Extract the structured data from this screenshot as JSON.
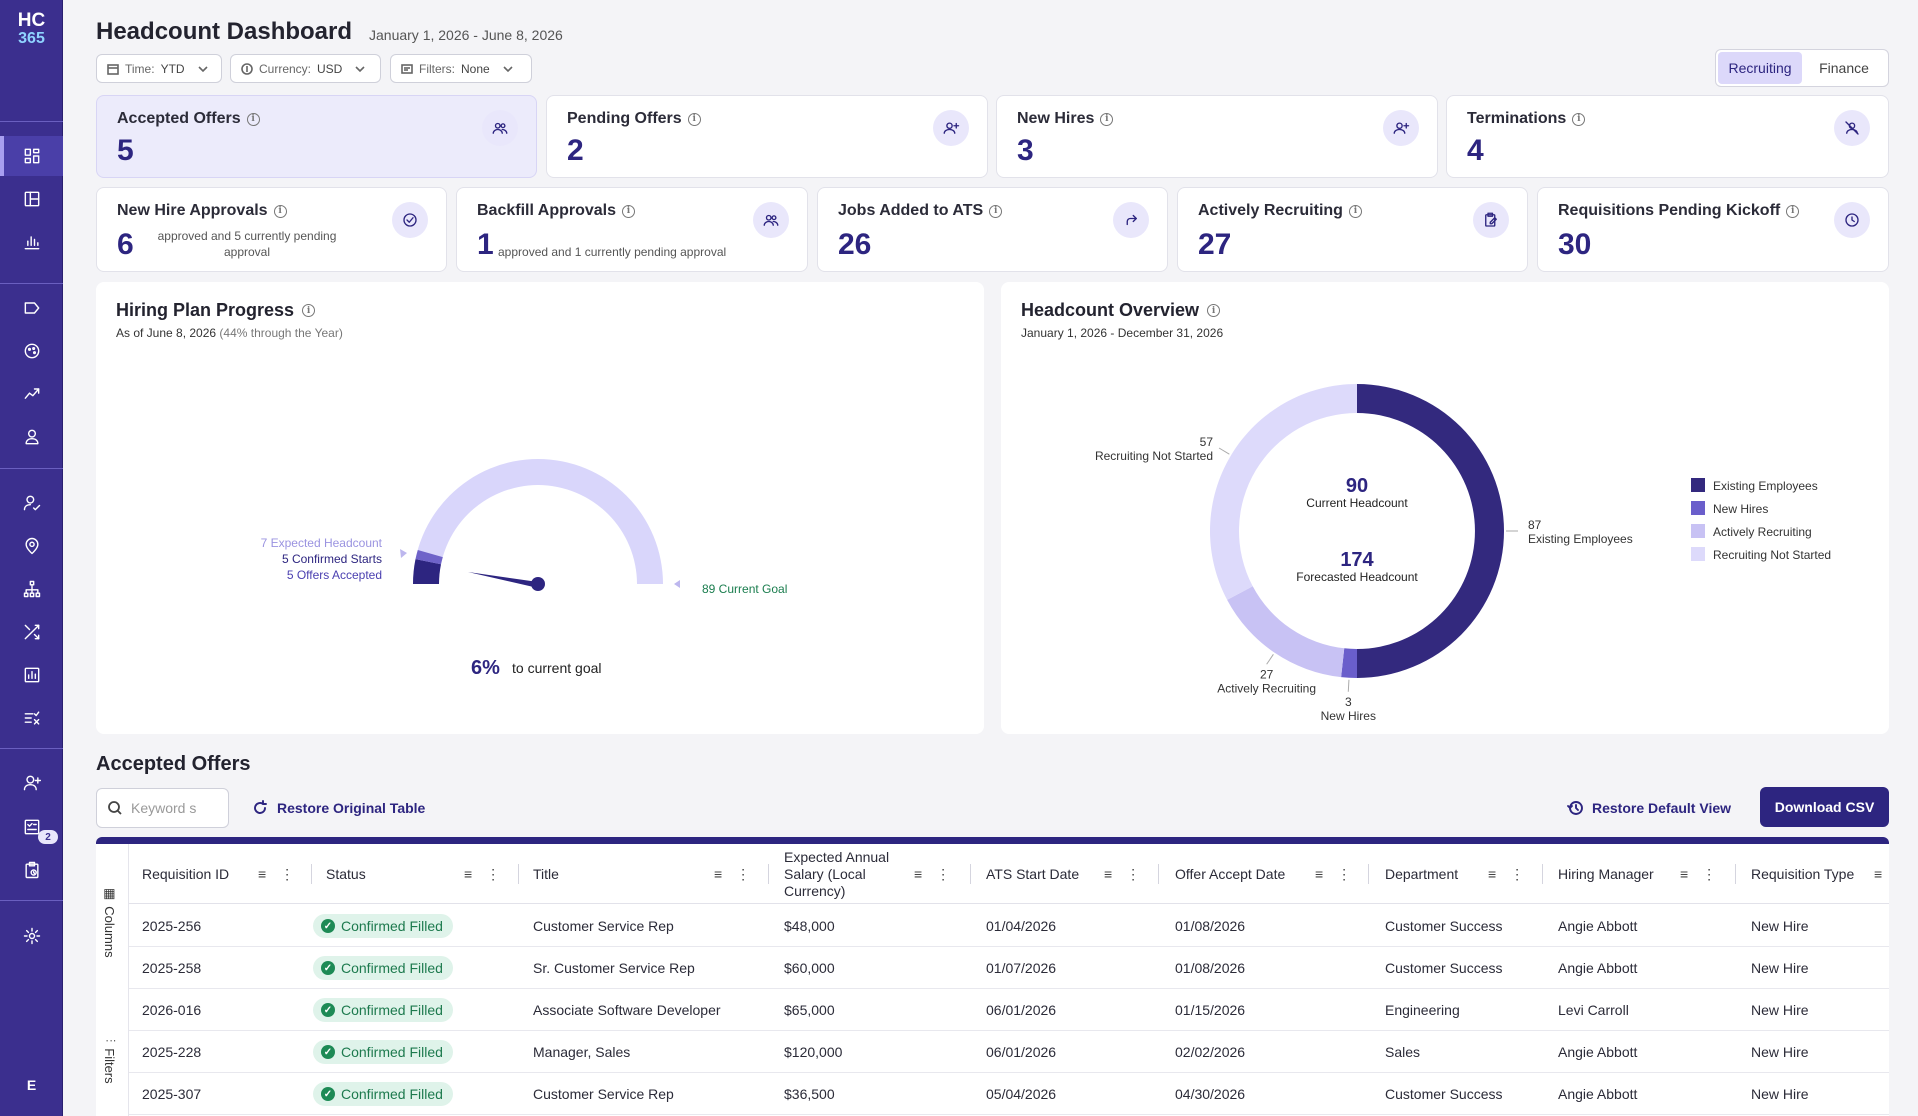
{
  "app": {
    "logo_line1": "HC",
    "logo_line2": "365",
    "user_initial": "E",
    "sidebar_badge": "2"
  },
  "header": {
    "title": "Headcount Dashboard",
    "date_range": "January 1, 2026 - June 8, 2026",
    "filters": [
      {
        "label": "Time:",
        "value": "YTD",
        "icon": "calendar-icon"
      },
      {
        "label": "Currency:",
        "value": "USD",
        "icon": "dollar-icon"
      },
      {
        "label": "Filters:",
        "value": "None",
        "icon": "filter-list-icon"
      }
    ],
    "view_toggle": {
      "options": [
        "Recruiting",
        "Finance"
      ],
      "selected": "Recruiting"
    }
  },
  "kpis_row1": [
    {
      "label": "Accepted Offers",
      "value": "5",
      "icon": "users-icon",
      "highlighted": true
    },
    {
      "label": "Pending Offers",
      "value": "2",
      "icon": "user-plus-icon"
    },
    {
      "label": "New Hires",
      "value": "3",
      "icon": "user-plus-icon"
    },
    {
      "label": "Terminations",
      "value": "4",
      "icon": "user-off-icon"
    }
  ],
  "kpis_row2": [
    {
      "label": "New Hire Approvals",
      "value": "6",
      "note": "approved and 5 currently pending approval",
      "icon": "check-circle-icon"
    },
    {
      "label": "Backfill Approvals",
      "value": "1",
      "note": "approved and 1 currently pending approval",
      "icon": "users-icon"
    },
    {
      "label": "Jobs Added to ATS",
      "value": "26",
      "icon": "share-arrow-icon"
    },
    {
      "label": "Actively Recruiting",
      "value": "27",
      "icon": "clipboard-edit-icon"
    },
    {
      "label": "Requisitions Pending Kickoff",
      "value": "30",
      "icon": "clock-icon"
    }
  ],
  "hiring_plan": {
    "title": "Hiring Plan Progress",
    "subtitle_date": "As of June 8, 2026",
    "subtitle_note": "(44% through the Year)",
    "legend": {
      "expected": "7 Expected Headcount",
      "confirmed": "5 Confirmed Starts",
      "accepted": "5 Offers Accepted",
      "goal": "89 Current Goal"
    },
    "percent": "6%",
    "percent_label": "to current goal",
    "colors": {
      "track": "#d9d6fb",
      "expected": "#6f63c9",
      "confirmed": "#2d2580",
      "goal_text": "#1a7d4e"
    }
  },
  "headcount_overview": {
    "title": "Headcount Overview",
    "subtitle": "January 1, 2026 - December 31, 2026",
    "current_value": "90",
    "current_label": "Current Headcount",
    "forecast_value": "174",
    "forecast_label": "Forecasted Headcount"
  },
  "chart_data": {
    "type": "pie",
    "title": "Headcount Overview",
    "categories": [
      "Existing Employees",
      "New Hires",
      "Actively Recruiting",
      "Recruiting Not Started"
    ],
    "values": [
      87,
      3,
      27,
      57
    ],
    "colors": [
      "#33297e",
      "#6a5ecb",
      "#c8c2f4",
      "#dddafb"
    ],
    "legend_position": "right"
  },
  "accepted_offers": {
    "title": "Accepted Offers",
    "search_placeholder": "Keyword s",
    "restore_table": "Restore Original Table",
    "restore_view": "Restore Default View",
    "download": "Download CSV",
    "side_columns": "Columns",
    "side_filters": "Filters",
    "columns": [
      "Requisition ID",
      "Status",
      "Title",
      "Expected Annual Salary (Local Currency)",
      "ATS Start Date",
      "Offer Accept Date",
      "Department",
      "Hiring Manager",
      "Requisition Type"
    ],
    "rows": [
      {
        "id": "2025-256",
        "status": "Confirmed Filled",
        "title": "Customer Service Rep",
        "salary": "$48,000",
        "ats": "01/04/2026",
        "accept": "01/08/2026",
        "dept": "Customer Success",
        "manager": "Angie Abbott",
        "type": "New Hire"
      },
      {
        "id": "2025-258",
        "status": "Confirmed Filled",
        "title": "Sr. Customer Service Rep",
        "salary": "$60,000",
        "ats": "01/07/2026",
        "accept": "01/08/2026",
        "dept": "Customer Success",
        "manager": "Angie Abbott",
        "type": "New Hire"
      },
      {
        "id": "2026-016",
        "status": "Confirmed Filled",
        "title": "Associate Software Developer",
        "salary": "$65,000",
        "ats": "06/01/2026",
        "accept": "01/15/2026",
        "dept": "Engineering",
        "manager": "Levi Carroll",
        "type": "New Hire"
      },
      {
        "id": "2025-228",
        "status": "Confirmed Filled",
        "title": "Manager, Sales",
        "salary": "$120,000",
        "ats": "06/01/2026",
        "accept": "02/02/2026",
        "dept": "Sales",
        "manager": "Angie Abbott",
        "type": "New Hire"
      },
      {
        "id": "2025-307",
        "status": "Confirmed Filled",
        "title": "Customer Service Rep",
        "salary": "$36,500",
        "ats": "05/04/2026",
        "accept": "04/30/2026",
        "dept": "Customer Success",
        "manager": "Angie Abbott",
        "type": "New Hire"
      }
    ]
  }
}
